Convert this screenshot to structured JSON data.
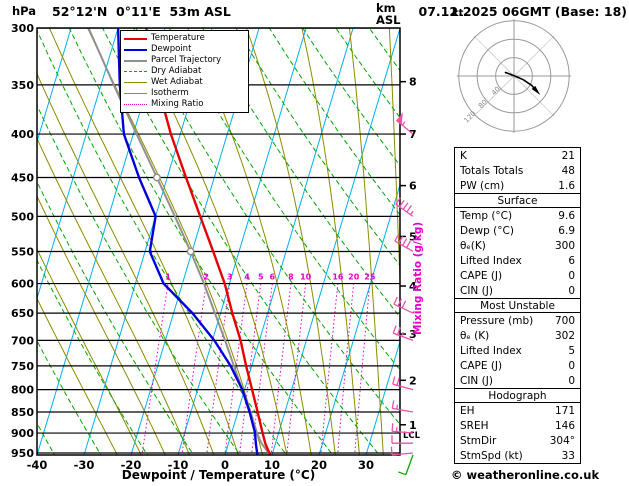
{
  "header": {
    "station_label": "52°12'N  0°11'E  53m ASL",
    "datetime_label": "07.12.2025 06GMT (Base: 18)",
    "pressure_unit": "hPa",
    "altitude_unit_line1": "km",
    "altitude_unit_line2": "ASL"
  },
  "legend": {
    "items": [
      {
        "label": "Temperature",
        "color": "#e60000",
        "style": "solid",
        "weight": 2
      },
      {
        "label": "Dewpoint",
        "color": "#0000dd",
        "style": "solid",
        "weight": 2
      },
      {
        "label": "Parcel Trajectory",
        "color": "#909090",
        "style": "solid",
        "weight": 2
      },
      {
        "label": "Dry Adiabat",
        "color": "#00a800",
        "style": "dashed",
        "weight": 1
      },
      {
        "label": "Wet Adiabat",
        "color": "#8c8c00",
        "style": "solid",
        "weight": 1
      },
      {
        "label": "Isotherm",
        "color": "#00b0f0",
        "style": "solid",
        "weight": 1
      },
      {
        "label": "Mixing Ratio",
        "color": "#e600c8",
        "style": "dotted",
        "weight": 1
      }
    ]
  },
  "axes": {
    "pressure_ticks_hPa": [
      300,
      350,
      400,
      450,
      500,
      550,
      600,
      650,
      700,
      750,
      800,
      850,
      900,
      950
    ],
    "temperature_ticks_C": [
      -40,
      -30,
      -20,
      -10,
      0,
      10,
      20,
      30
    ],
    "altitude_ticks_km": [
      1,
      2,
      3,
      4,
      5,
      6,
      7,
      8
    ],
    "x_axis_label": "Dewpoint / Temperature (°C)",
    "mixing_ratio_axis_label": "Mixing Ratio (g/kg)",
    "lcl_label": "LCL"
  },
  "chart_data": {
    "type": "line",
    "subtype": "skew-t-log-p-sounding",
    "pressure_range_hPa": [
      300,
      955
    ],
    "x_range_C": [
      -40,
      37
    ],
    "grid": true,
    "pressure_hPa": [
      955,
      925,
      900,
      850,
      800,
      750,
      700,
      650,
      600,
      550,
      500,
      450,
      400,
      350,
      300
    ],
    "temperature_C": [
      9.6,
      7.8,
      6.6,
      4.2,
      1.6,
      -1.2,
      -4.0,
      -7.5,
      -11.0,
      -15.5,
      -20.5,
      -26.0,
      -32.0,
      -38.0,
      -44.0
    ],
    "dewpoint_C": [
      6.9,
      5.8,
      5.0,
      2.5,
      -0.5,
      -4.5,
      -9.6,
      -16.0,
      -24.0,
      -29.0,
      -30.0,
      -36.0,
      -42.0,
      -46.0,
      -50.0
    ],
    "parcel_C": [
      9.6,
      7.0,
      5.4,
      2.7,
      -0.5,
      -3.8,
      -7.3,
      -11.2,
      -15.4,
      -20.3,
      -25.9,
      -32.2,
      -39.3,
      -47.3,
      -56.3
    ],
    "parcel_marker_levels_hPa": [
      550,
      450
    ],
    "lcl_pressure_hPa": 905,
    "mixing_ratio_lines_g_kg": [
      1,
      2,
      3,
      4,
      5,
      6,
      8,
      10,
      16,
      20,
      25
    ],
    "isotherm_step_C": 10,
    "colors": {
      "temperature": "#e60000",
      "dewpoint": "#0000dd",
      "parcel": "#909090",
      "dry_adiabat": "#00a800",
      "wet_adiabat": "#8c8c00",
      "isotherm": "#00b0f0",
      "mixing_ratio": "#e600c8",
      "barb_upper": "#ec4fae",
      "barb_surface": "#00a800"
    },
    "wind_barbs": [
      {
        "pressure_hPa": 400,
        "dir_deg": 310,
        "speed_kt": 55
      },
      {
        "pressure_hPa": 500,
        "dir_deg": 305,
        "speed_kt": 45
      },
      {
        "pressure_hPa": 550,
        "dir_deg": 300,
        "speed_kt": 40
      },
      {
        "pressure_hPa": 650,
        "dir_deg": 295,
        "speed_kt": 30
      },
      {
        "pressure_hPa": 700,
        "dir_deg": 290,
        "speed_kt": 25
      },
      {
        "pressure_hPa": 800,
        "dir_deg": 285,
        "speed_kt": 20
      },
      {
        "pressure_hPa": 850,
        "dir_deg": 280,
        "speed_kt": 18
      },
      {
        "pressure_hPa": 900,
        "dir_deg": 275,
        "speed_kt": 15
      },
      {
        "pressure_hPa": 925,
        "dir_deg": 270,
        "speed_kt": 12
      },
      {
        "pressure_hPa": 950,
        "dir_deg": 265,
        "speed_kt": 10
      },
      {
        "pressure_hPa": 955,
        "dir_deg": 200,
        "speed_kt": 10,
        "surface": true
      }
    ],
    "hodograph": {
      "unit_label": "kt",
      "ring_labels_kt": [
        40,
        80,
        120
      ],
      "trace_uv_kt": [
        [
          -20,
          8
        ],
        [
          -8,
          4
        ],
        [
          6,
          -2
        ],
        [
          20,
          -8
        ],
        [
          38,
          -20
        ],
        [
          47,
          -30
        ]
      ],
      "storm_dir_deg": 304,
      "storm_speed_kt": 33
    }
  },
  "table": {
    "top_rows": [
      [
        "K",
        "21"
      ],
      [
        "Totals Totals",
        "48"
      ],
      [
        "PW (cm)",
        "1.6"
      ]
    ],
    "sections": [
      {
        "title": "Surface",
        "rows": [
          [
            "Temp (°C)",
            "9.6"
          ],
          [
            "Dewp (°C)",
            "6.9"
          ],
          [
            "θₑ(K)",
            "300"
          ],
          [
            "Lifted Index",
            "6"
          ],
          [
            "CAPE (J)",
            "0"
          ],
          [
            "CIN (J)",
            "0"
          ]
        ]
      },
      {
        "title": "Most Unstable",
        "rows": [
          [
            "Pressure (mb)",
            "700"
          ],
          [
            "θₑ (K)",
            "302"
          ],
          [
            "Lifted Index",
            "5"
          ],
          [
            "CAPE (J)",
            "0"
          ],
          [
            "CIN (J)",
            "0"
          ]
        ]
      },
      {
        "title": "Hodograph",
        "rows": [
          [
            "EH",
            "171"
          ],
          [
            "SREH",
            "146"
          ],
          [
            "StmDir",
            "304°"
          ],
          [
            "StmSpd (kt)",
            "33"
          ]
        ]
      }
    ]
  },
  "footer": {
    "copyright_label": "© weatheronline.co.uk"
  }
}
